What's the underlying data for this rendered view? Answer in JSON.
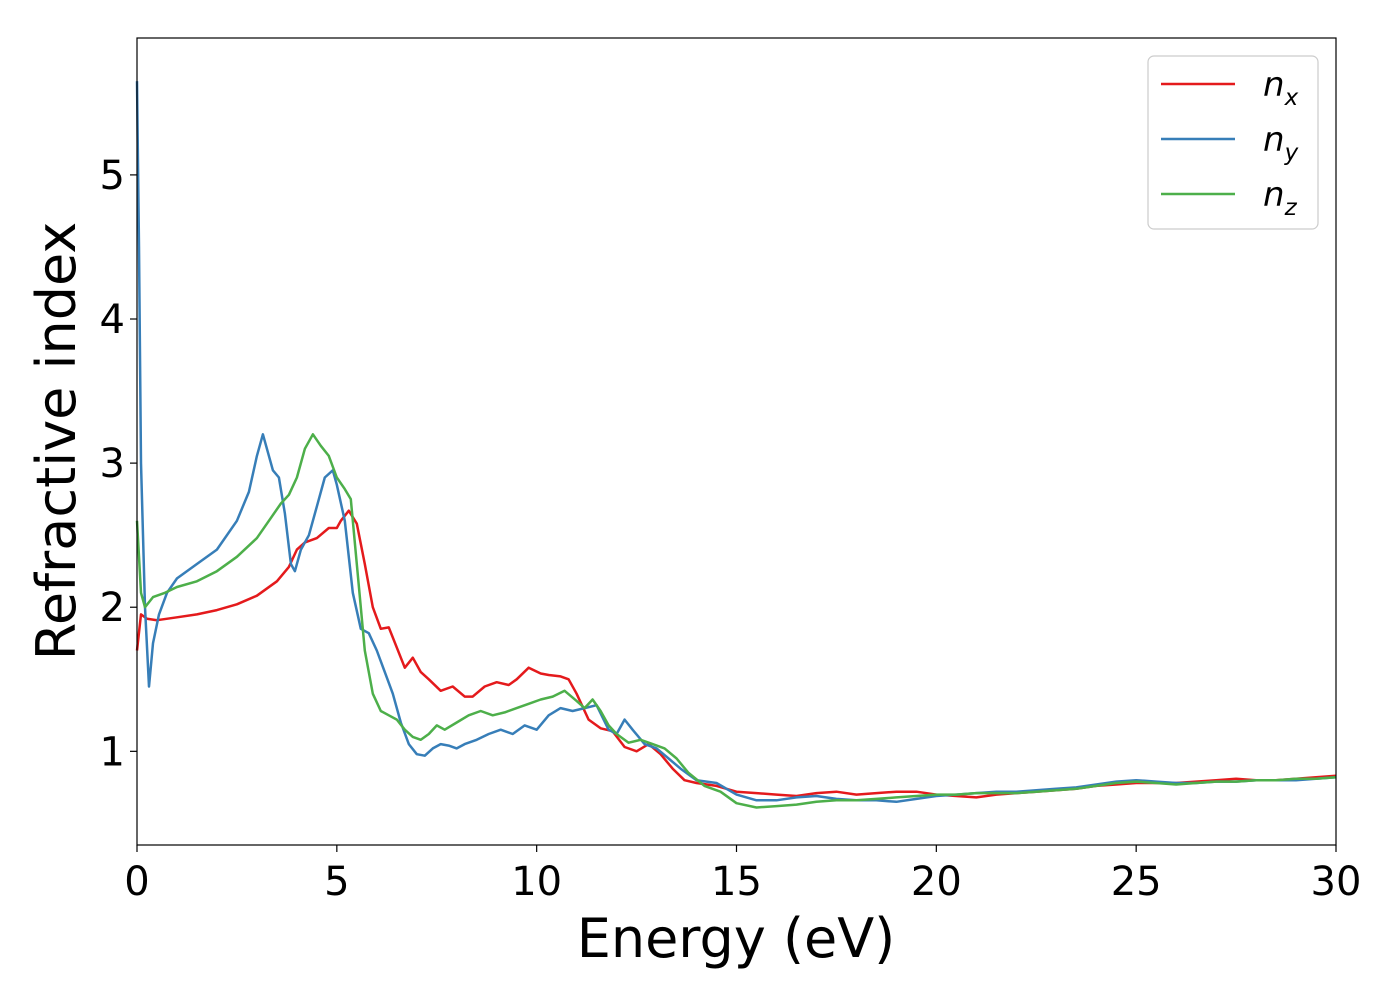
{
  "chart_data": {
    "type": "line",
    "title": "",
    "xlabel": "Energy (eV)",
    "ylabel": "Refractive index",
    "xlim": [
      0,
      30
    ],
    "ylim": [
      0.35,
      5.95
    ],
    "xticks": [
      0,
      5,
      10,
      15,
      20,
      25,
      30
    ],
    "yticks": [
      1,
      2,
      3,
      4,
      5
    ],
    "grid": false,
    "legend_position": "top-right",
    "series": [
      {
        "name": "n",
        "subscript": "x",
        "color": "#e41a1c",
        "x": [
          0,
          0.1,
          0.25,
          0.5,
          1,
          1.5,
          2,
          2.5,
          3,
          3.5,
          3.8,
          4,
          4.2,
          4.5,
          4.8,
          5,
          5.1,
          5.3,
          5.5,
          5.7,
          5.9,
          6.1,
          6.3,
          6.5,
          6.7,
          6.9,
          7.1,
          7.3,
          7.6,
          7.9,
          8.2,
          8.4,
          8.7,
          9,
          9.3,
          9.5,
          9.8,
          10.1,
          10.3,
          10.6,
          10.8,
          11,
          11.3,
          11.6,
          11.9,
          12.2,
          12.5,
          12.8,
          13.1,
          13.4,
          13.7,
          14,
          14.5,
          15,
          15.5,
          16,
          16.5,
          17,
          17.5,
          18,
          18.5,
          19,
          19.5,
          20,
          20.5,
          21,
          21.5,
          22,
          22.5,
          23,
          23.5,
          24,
          24.5,
          25,
          25.5,
          26,
          26.5,
          27,
          27.5,
          28,
          28.5,
          29,
          29.5,
          30
        ],
        "y": [
          1.7,
          1.95,
          1.92,
          1.91,
          1.93,
          1.95,
          1.98,
          2.02,
          2.08,
          2.18,
          2.28,
          2.4,
          2.45,
          2.48,
          2.55,
          2.55,
          2.6,
          2.67,
          2.58,
          2.3,
          2.0,
          1.85,
          1.86,
          1.72,
          1.58,
          1.65,
          1.55,
          1.5,
          1.42,
          1.45,
          1.38,
          1.38,
          1.45,
          1.48,
          1.46,
          1.5,
          1.58,
          1.54,
          1.53,
          1.52,
          1.5,
          1.4,
          1.22,
          1.16,
          1.14,
          1.03,
          1.0,
          1.05,
          0.98,
          0.88,
          0.8,
          0.78,
          0.76,
          0.72,
          0.71,
          0.7,
          0.69,
          0.71,
          0.72,
          0.7,
          0.71,
          0.72,
          0.72,
          0.7,
          0.69,
          0.68,
          0.7,
          0.71,
          0.72,
          0.73,
          0.74,
          0.76,
          0.77,
          0.78,
          0.78,
          0.78,
          0.79,
          0.8,
          0.81,
          0.8,
          0.8,
          0.81,
          0.82,
          0.83
        ]
      },
      {
        "name": "n",
        "subscript": "y",
        "color": "#377eb8",
        "x": [
          0,
          0.05,
          0.1,
          0.2,
          0.3,
          0.4,
          0.55,
          0.75,
          1,
          1.5,
          2,
          2.5,
          2.8,
          3.0,
          3.15,
          3.25,
          3.4,
          3.55,
          3.7,
          3.85,
          3.95,
          4.1,
          4.3,
          4.5,
          4.7,
          4.9,
          5.0,
          5.2,
          5.4,
          5.6,
          5.8,
          6.0,
          6.2,
          6.4,
          6.6,
          6.8,
          7.0,
          7.2,
          7.4,
          7.6,
          7.8,
          8.0,
          8.2,
          8.5,
          8.8,
          9.1,
          9.4,
          9.7,
          10.0,
          10.3,
          10.6,
          10.9,
          11.2,
          11.5,
          11.8,
          12.0,
          12.2,
          12.4,
          12.7,
          13.0,
          13.3,
          13.6,
          14,
          14.5,
          15,
          15.5,
          16,
          16.5,
          17,
          17.5,
          18,
          18.5,
          19,
          19.5,
          20,
          20.5,
          21,
          21.5,
          22,
          22.5,
          23,
          23.5,
          24,
          24.5,
          25,
          25.5,
          26,
          26.5,
          27,
          27.5,
          28,
          28.5,
          29,
          29.5,
          30
        ],
        "y": [
          5.65,
          4.5,
          3.0,
          2.0,
          1.45,
          1.75,
          1.95,
          2.1,
          2.2,
          2.3,
          2.4,
          2.6,
          2.8,
          3.05,
          3.2,
          3.1,
          2.95,
          2.9,
          2.65,
          2.3,
          2.25,
          2.4,
          2.5,
          2.7,
          2.9,
          2.95,
          2.85,
          2.6,
          2.1,
          1.85,
          1.82,
          1.7,
          1.55,
          1.4,
          1.2,
          1.05,
          0.98,
          0.97,
          1.02,
          1.05,
          1.04,
          1.02,
          1.05,
          1.08,
          1.12,
          1.15,
          1.12,
          1.18,
          1.15,
          1.25,
          1.3,
          1.28,
          1.3,
          1.32,
          1.15,
          1.12,
          1.22,
          1.15,
          1.05,
          1.02,
          0.95,
          0.88,
          0.8,
          0.78,
          0.7,
          0.66,
          0.66,
          0.68,
          0.69,
          0.67,
          0.66,
          0.66,
          0.65,
          0.67,
          0.69,
          0.7,
          0.71,
          0.72,
          0.72,
          0.73,
          0.74,
          0.75,
          0.77,
          0.79,
          0.8,
          0.79,
          0.78,
          0.78,
          0.79,
          0.79,
          0.8,
          0.8,
          0.8,
          0.81,
          0.82
        ]
      },
      {
        "name": "n",
        "subscript": "z",
        "color": "#4daf4a",
        "x": [
          0,
          0.1,
          0.2,
          0.4,
          0.7,
          1,
          1.5,
          2,
          2.5,
          3,
          3.3,
          3.6,
          3.8,
          4.0,
          4.2,
          4.4,
          4.6,
          4.8,
          5.0,
          5.2,
          5.35,
          5.5,
          5.7,
          5.9,
          6.1,
          6.3,
          6.5,
          6.7,
          6.9,
          7.1,
          7.3,
          7.5,
          7.7,
          8.0,
          8.3,
          8.6,
          8.9,
          9.2,
          9.5,
          9.8,
          10.1,
          10.4,
          10.7,
          11.0,
          11.2,
          11.4,
          11.6,
          11.8,
          12.0,
          12.3,
          12.6,
          12.9,
          13.2,
          13.5,
          13.8,
          14.2,
          14.6,
          15,
          15.5,
          16,
          16.5,
          17,
          17.5,
          18,
          18.5,
          19,
          19.5,
          20,
          20.5,
          21,
          21.5,
          22,
          22.5,
          23,
          23.5,
          24,
          24.5,
          25,
          25.5,
          26,
          26.5,
          27,
          27.5,
          28,
          28.5,
          29,
          29.5,
          30
        ],
        "y": [
          2.6,
          2.1,
          2.0,
          2.07,
          2.1,
          2.14,
          2.18,
          2.25,
          2.35,
          2.48,
          2.6,
          2.72,
          2.78,
          2.9,
          3.1,
          3.2,
          3.12,
          3.05,
          2.9,
          2.82,
          2.75,
          2.3,
          1.7,
          1.4,
          1.28,
          1.25,
          1.22,
          1.15,
          1.1,
          1.08,
          1.12,
          1.18,
          1.15,
          1.2,
          1.25,
          1.28,
          1.25,
          1.27,
          1.3,
          1.33,
          1.36,
          1.38,
          1.42,
          1.35,
          1.3,
          1.36,
          1.28,
          1.18,
          1.12,
          1.06,
          1.08,
          1.05,
          1.02,
          0.95,
          0.85,
          0.76,
          0.72,
          0.64,
          0.61,
          0.62,
          0.63,
          0.65,
          0.66,
          0.66,
          0.67,
          0.68,
          0.69,
          0.7,
          0.7,
          0.71,
          0.71,
          0.71,
          0.72,
          0.73,
          0.74,
          0.76,
          0.78,
          0.79,
          0.78,
          0.77,
          0.78,
          0.79,
          0.79,
          0.8,
          0.8,
          0.81,
          0.81,
          0.82
        ]
      }
    ]
  }
}
